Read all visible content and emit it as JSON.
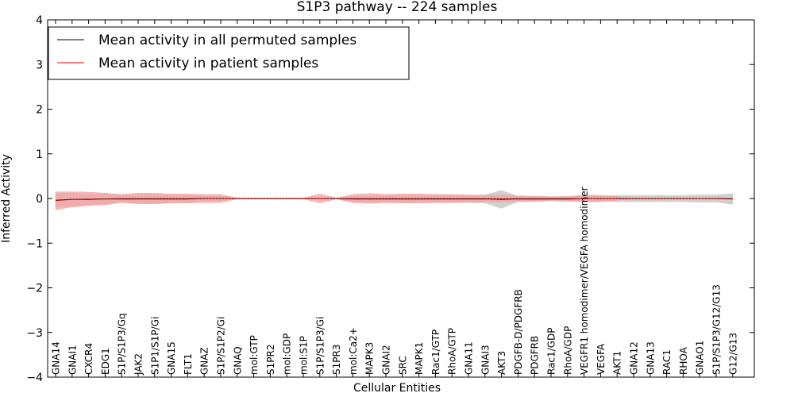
{
  "chart_data": {
    "type": "line",
    "title": "S1P3 pathway -- 224 samples",
    "xlabel": "Cellular Entities",
    "ylabel": "Inferred Activity",
    "ylim": [
      -4,
      4
    ],
    "yticks": [
      -4,
      -3,
      -2,
      -1,
      0,
      1,
      2,
      3,
      4
    ],
    "ytick_labels": [
      "−4",
      "−3",
      "−2",
      "−1",
      "0",
      "1",
      "2",
      "3",
      "4"
    ],
    "legend_position": "top-left",
    "categories": [
      "GNA14",
      "GNAI1",
      "CXCR4",
      "EDG1",
      "S1P/S1P3/Gq",
      "JAK2",
      "S1P1/S1P/Gi",
      "GNA15",
      "FLT1",
      "GNAZ",
      "S1P/S1P2/Gi",
      "GNAQ",
      "mol:GTP",
      "S1PR2",
      "mol:GDP",
      "mol:S1P",
      "S1P/S1P3/Gi",
      "S1PR3",
      "mol:Ca2+",
      "MAPK3",
      "GNAI2",
      "SRC",
      "MAPK1",
      "Rac1/GTP",
      "RhoA/GTP",
      "GNA11",
      "GNAI3",
      "AKT3",
      "PDGFB-D/PDGFRB",
      "PDGFRB",
      "Rac1/GDP",
      "RhoA/GDP",
      "VEGFR1 homodimer/VEGFA homodimer",
      "VEGFA",
      "AKT1",
      "GNA12",
      "GNA13",
      "RAC1",
      "RHOA",
      "GNAO1",
      "S1P/S1P3/G12/G13",
      "G12/G13"
    ],
    "series": [
      {
        "name": "Mean activity in all permuted samples",
        "color": "#000000",
        "band_color": "#c8c8c8",
        "values": [
          -0.04,
          -0.02,
          -0.02,
          -0.01,
          -0.01,
          -0.01,
          -0.01,
          -0.01,
          -0.01,
          0.0,
          0.0,
          0.0,
          0.0,
          0.0,
          0.0,
          0.0,
          0.0,
          0.0,
          -0.01,
          -0.01,
          -0.01,
          -0.01,
          -0.01,
          -0.01,
          -0.01,
          -0.01,
          -0.01,
          -0.02,
          -0.01,
          -0.01,
          -0.01,
          -0.01,
          0.0,
          0.0,
          0.0,
          0.0,
          0.0,
          0.0,
          0.0,
          0.0,
          0.0,
          -0.01
        ],
        "band": [
          0.16,
          0.14,
          0.12,
          0.11,
          0.08,
          0.09,
          0.1,
          0.08,
          0.08,
          0.06,
          0.05,
          0.01,
          0.01,
          0.01,
          0.01,
          0.01,
          0.01,
          0.01,
          0.06,
          0.07,
          0.07,
          0.08,
          0.08,
          0.08,
          0.08,
          0.08,
          0.09,
          0.2,
          0.06,
          0.06,
          0.05,
          0.06,
          0.06,
          0.06,
          0.07,
          0.07,
          0.07,
          0.07,
          0.07,
          0.08,
          0.08,
          0.12
        ]
      },
      {
        "name": "Mean activity in patient samples",
        "color": "#ff0000",
        "band_color": "#f7a1a1",
        "values": [
          -0.05,
          -0.02,
          -0.01,
          -0.01,
          0.0,
          0.0,
          0.0,
          0.0,
          0.0,
          0.0,
          0.0,
          0.0,
          0.0,
          0.0,
          0.0,
          0.0,
          0.0,
          0.0,
          0.0,
          0.0,
          0.0,
          0.0,
          0.0,
          0.0,
          0.0,
          0.0,
          0.0,
          0.0,
          0.0,
          0.0,
          0.0,
          0.0,
          0.0,
          0.0,
          0.0,
          0.0,
          0.0,
          0.0,
          0.0,
          0.0,
          0.0,
          0.0
        ],
        "band": [
          0.2,
          0.17,
          0.15,
          0.13,
          0.09,
          0.12,
          0.12,
          0.1,
          0.1,
          0.09,
          0.09,
          0.01,
          0.01,
          0.01,
          0.01,
          0.01,
          0.1,
          0.01,
          0.09,
          0.11,
          0.09,
          0.1,
          0.1,
          0.09,
          0.09,
          0.08,
          0.07,
          0.08,
          0.06,
          0.05,
          0.04,
          0.04,
          0.08,
          0.07,
          0.04,
          0.01,
          0.01,
          0.01,
          0.01,
          0.01,
          0.01,
          0.01
        ]
      }
    ]
  }
}
